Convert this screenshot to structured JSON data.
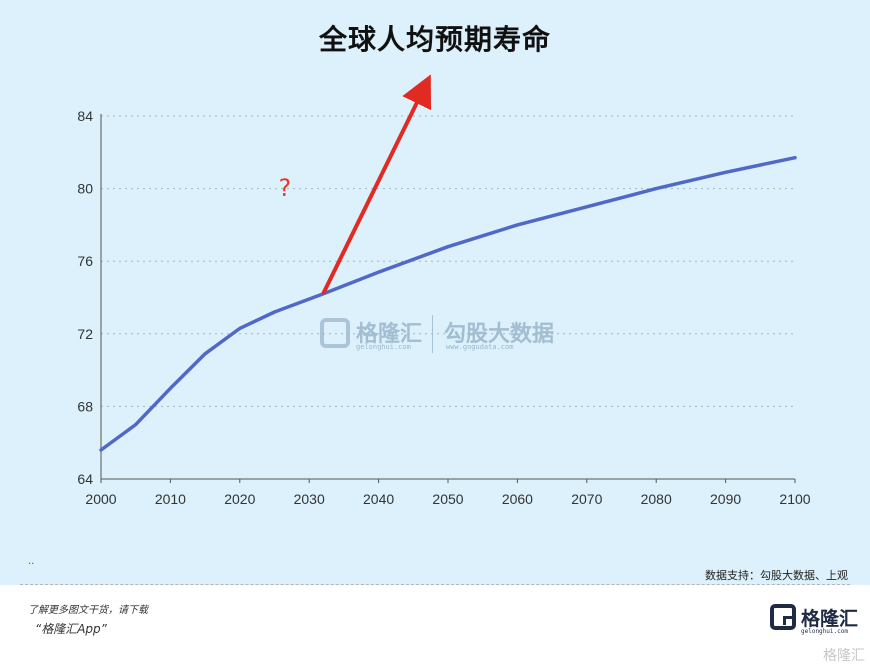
{
  "watermark": {
    "brand": "格隆汇",
    "brand_url": "gelonghui.com",
    "data_brand": "勾股大数据",
    "data_url": "www.gogudata.com"
  },
  "annotation": {
    "text": "?"
  },
  "footer": {
    "dots": "..",
    "source": "数据支持：勾股大数据、上观",
    "promo_line1": "了解更多图文干货，请下载",
    "promo_line2": "“格隆汇App”",
    "brand_name": "格隆汇",
    "brand_url": "gelonghui.com",
    "corner_mark": "格隆汇"
  },
  "colors": {
    "background": "#dcf1fb",
    "line": "#5068c8",
    "arrow": "#e02a22"
  },
  "chart_data": {
    "type": "line",
    "title": "全球人均预期寿命",
    "xlabel": "",
    "ylabel": "",
    "xlim": [
      2000,
      2100
    ],
    "ylim": [
      64,
      84
    ],
    "xticks": [
      2000,
      2010,
      2020,
      2030,
      2040,
      2050,
      2060,
      2070,
      2080,
      2090,
      2100
    ],
    "yticks": [
      64,
      68,
      72,
      76,
      80,
      84
    ],
    "grid": "horizontal dotted",
    "series": [
      {
        "x": [
          2000,
          2005,
          2010,
          2015,
          2020,
          2025,
          2032,
          2040,
          2050,
          2060,
          2070,
          2080,
          2090,
          2100
        ],
        "y": [
          65.6,
          67.0,
          69.0,
          70.9,
          72.3,
          73.2,
          74.2,
          75.4,
          76.8,
          78.0,
          79.0,
          80.0,
          80.9,
          81.7
        ]
      }
    ],
    "annotations": [
      {
        "type": "arrow",
        "from": {
          "x": 2032,
          "y": 74.2
        },
        "to": {
          "x": 2046.5,
          "y": 85.5
        }
      }
    ]
  }
}
